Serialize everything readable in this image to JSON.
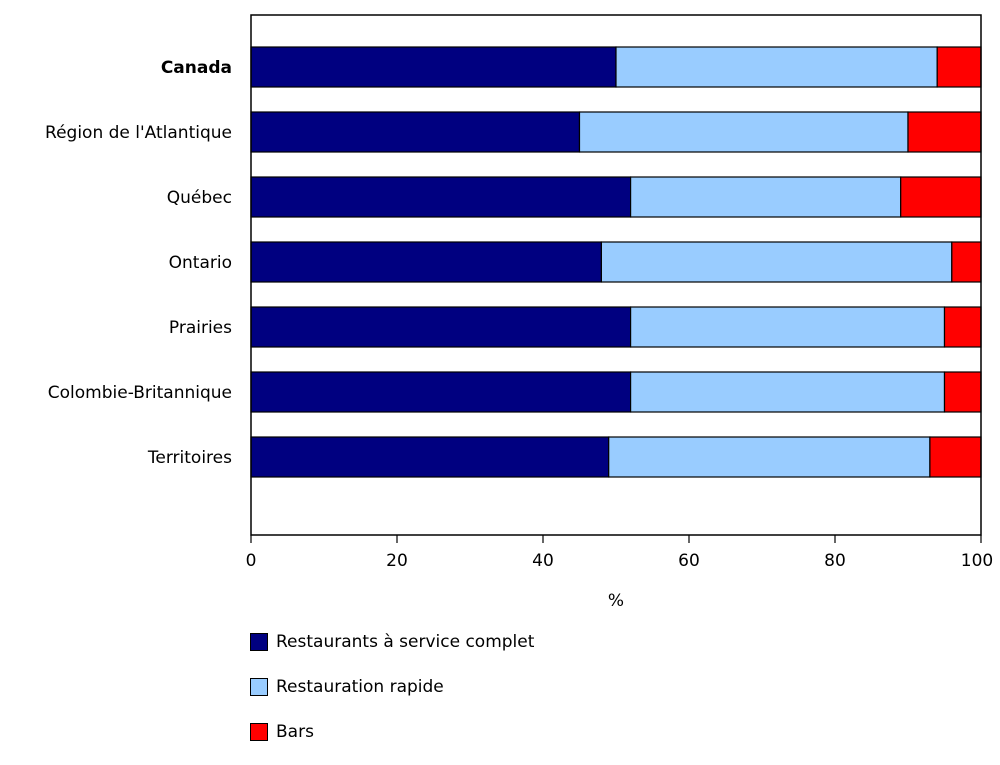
{
  "chart_data": {
    "type": "bar",
    "orientation": "horizontal",
    "stacked": true,
    "categories": [
      "Canada",
      "Région de l'Atlantique",
      "Québec",
      "Ontario",
      "Prairies",
      "Colombie-Britannique",
      "Territoires"
    ],
    "bold_categories": [
      "Canada"
    ],
    "series": [
      {
        "name": "Restaurants à service complet",
        "color": "#000080",
        "values": [
          50,
          45,
          52,
          48,
          52,
          52,
          49
        ]
      },
      {
        "name": "Restauration rapide",
        "color": "#99ccff",
        "values": [
          44,
          45,
          37,
          48,
          43,
          43,
          44
        ]
      },
      {
        "name": "Bars",
        "color": "#ff0000",
        "values": [
          6,
          10,
          11,
          4,
          5,
          5,
          7
        ]
      }
    ],
    "xlabel": "%",
    "xlim": [
      0,
      100
    ],
    "xticks": [
      0,
      20,
      40,
      60,
      80,
      100
    ],
    "grid": false,
    "legend_position": "bottom"
  }
}
